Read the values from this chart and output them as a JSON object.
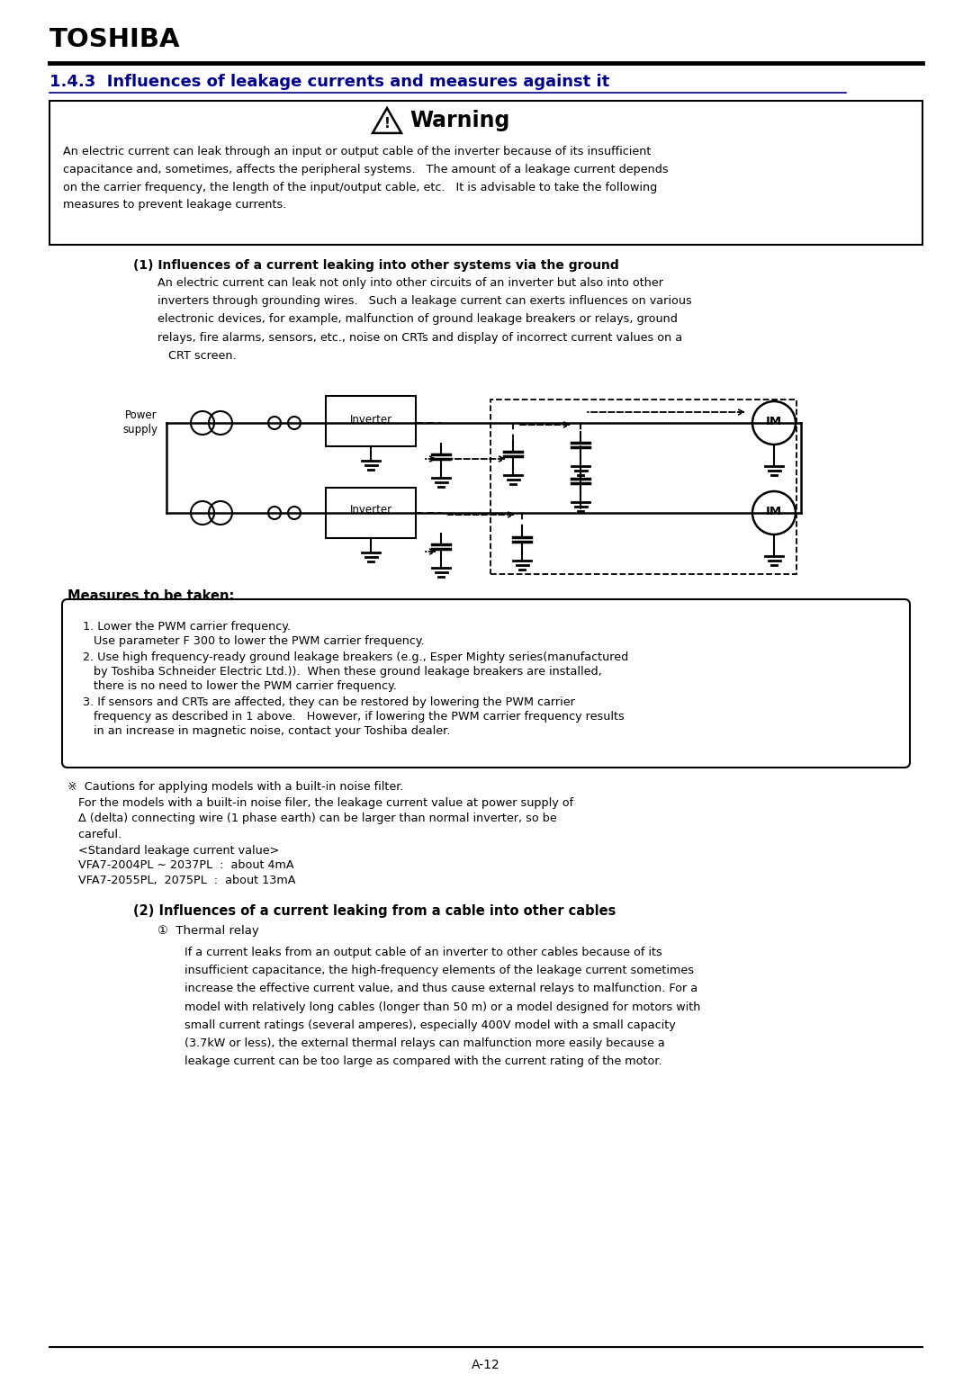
{
  "title_company": "TOSHIBA",
  "section_title": "1.4.3  Influences of leakage currents and measures against it",
  "warning_title": "Warning",
  "warning_body": "An electric current can leak through an input or output cable of the inverter because of its insufficient\ncapacitance and, sometimes, affects the peripheral systems.   The amount of a leakage current depends\non the carrier frequency, the length of the input/output cable, etc.   It is advisable to take the following\nmeasures to prevent leakage currents.",
  "section1_title": "(1) Influences of a current leaking into other systems via the ground",
  "section1_body": "An electric current can leak not only into other circuits of an inverter but also into other\ninverters through grounding wires.   Such a leakage current can exerts influences on various\nelectronic devices, for example, malfunction of ground leakage breakers or relays, ground\nrelays, fire alarms, sensors, etc., noise on CRTs and display of incorrect current values on a\n   CRT screen.",
  "measures_title": "Measures to be taken:",
  "caution_text1": "※  Cautions for applying models with a built-in noise filter.",
  "caution_text2": "   For the models with a built-in noise filer, the leakage current value at power supply of",
  "caution_text3": "   Δ (delta) connecting wire (1 phase earth) can be larger than normal inverter, so be",
  "caution_text4": "   careful.",
  "caution_text5": "   <Standard leakage current value>",
  "caution_text6": "   VFA7-2004PL ∼ 2037PL  :  about 4mA",
  "caution_text7": "   VFA7-2055PL,  2075PL  :  about 13mA",
  "section2_title": "(2) Influences of a current leaking from a cable into other cables",
  "section2_sub": "①  Thermal relay",
  "section2_body": "If a current leaks from an output cable of an inverter to other cables because of its\ninsufficient capacitance, the high-frequency elements of the leakage current sometimes\nincrease the effective current value, and thus cause external relays to malfunction. For a\nmodel with relatively long cables (longer than 50 m) or a model designed for motors with\nsmall current ratings (several amperes), especially 400V model with a small capacity\n(3.7kW or less), the external thermal relays can malfunction more easily because a\nleakage current can be too large as compared with the current rating of the motor.",
  "page_number": "A-12",
  "bg_color": "#ffffff",
  "text_color": "#000000"
}
